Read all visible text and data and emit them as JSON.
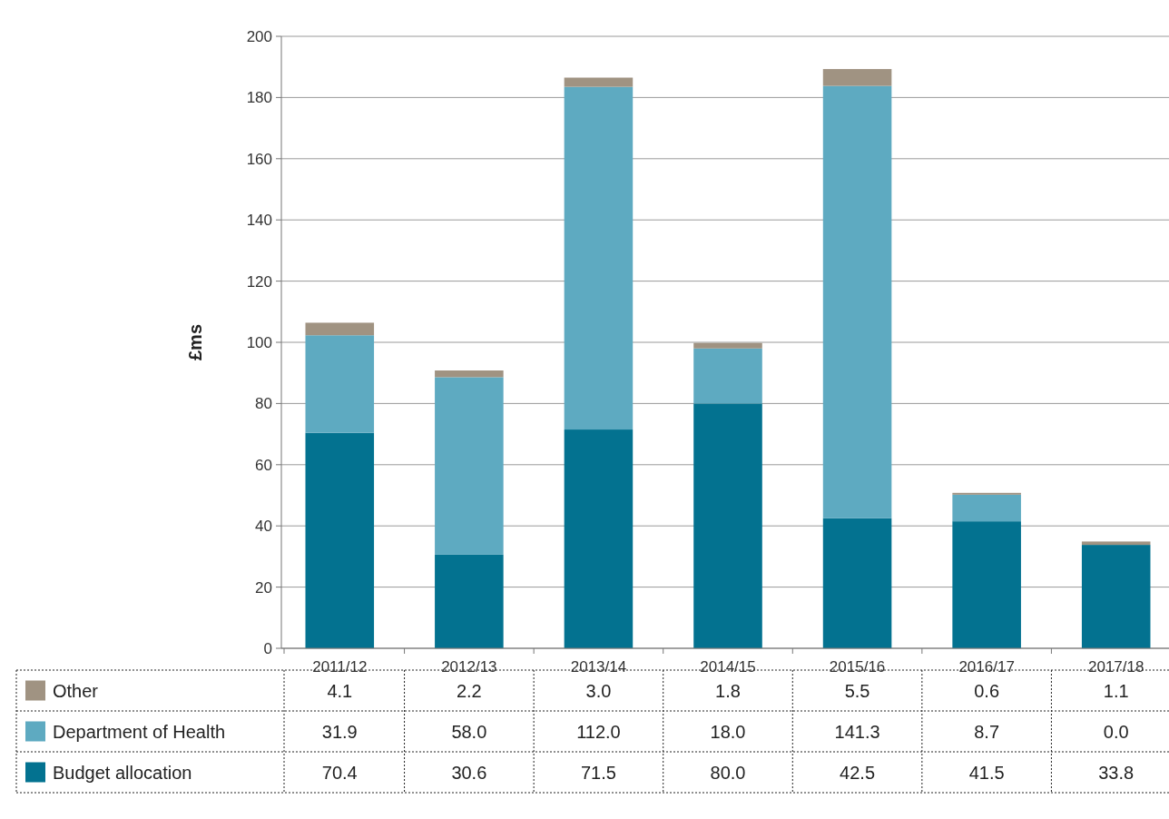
{
  "chart_data": {
    "type": "bar",
    "stacked": true,
    "ylabel": "£ms",
    "categories": [
      "2011/12",
      "2012/13",
      "2013/14",
      "2014/15",
      "2015/16",
      "2016/17",
      "2017/18"
    ],
    "series": [
      {
        "name": "Budget allocation",
        "color": "#037290",
        "values": [
          70.4,
          30.6,
          71.5,
          80.0,
          42.5,
          41.5,
          33.8
        ],
        "value_labels": [
          "70.4",
          "30.6",
          "71.5",
          "80.0",
          "42.5",
          "41.5",
          "33.8"
        ]
      },
      {
        "name": "Department of Health",
        "color": "#5eaac1",
        "values": [
          31.9,
          58.0,
          112.0,
          18.0,
          141.3,
          8.7,
          0.0
        ],
        "value_labels": [
          "31.9",
          "58.0",
          "112.0",
          "18.0",
          "141.3",
          "8.7",
          "0.0"
        ]
      },
      {
        "name": "Other",
        "color": "#a09382",
        "values": [
          4.1,
          2.2,
          3.0,
          1.8,
          5.5,
          0.6,
          1.1
        ],
        "value_labels": [
          "4.1",
          "2.2",
          "3.0",
          "1.8",
          "5.5",
          "0.6",
          "1.1"
        ]
      }
    ],
    "ylim": [
      0,
      200
    ],
    "yticks": [
      0,
      20,
      40,
      60,
      80,
      100,
      120,
      140,
      160,
      180,
      200
    ],
    "grid": "y",
    "legend": "bottom"
  }
}
